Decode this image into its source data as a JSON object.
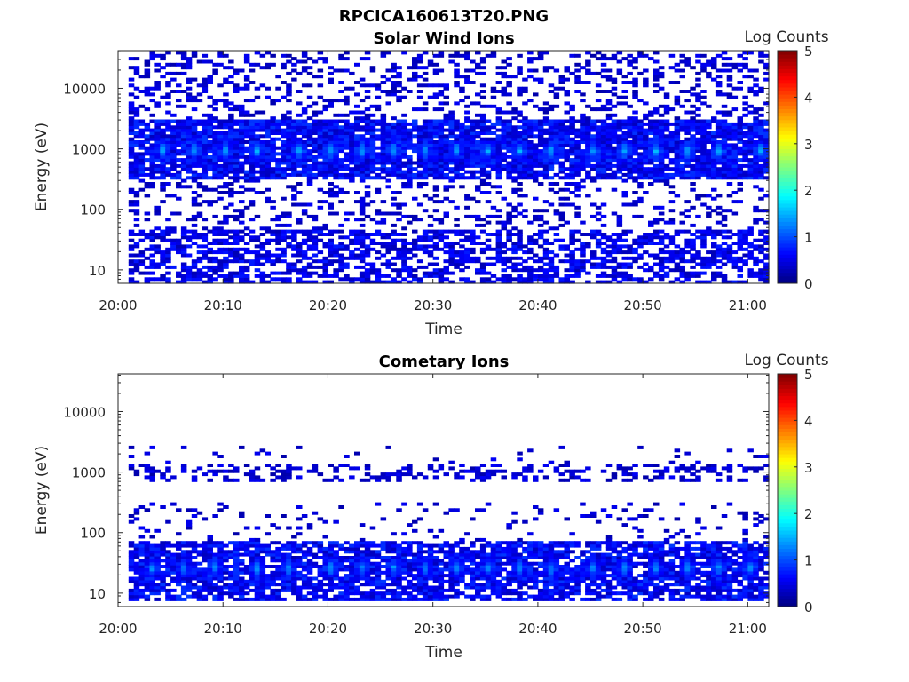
{
  "figure_title": "RPCICA160613T20.PNG",
  "chart_data": [
    {
      "type": "heatmap",
      "title": "Solar Wind Ions",
      "xlabel": "Time",
      "ylabel": "Energy (eV)",
      "xlim": [
        "20:00",
        "21:02"
      ],
      "ylim": [
        6,
        42000
      ],
      "yscale": "log",
      "x_tick_labels": [
        "20:00",
        "20:10",
        "20:20",
        "20:30",
        "20:40",
        "20:50",
        "21:00"
      ],
      "y_tick_labels": [
        "10",
        "100",
        "1000",
        "10000"
      ],
      "colorbar": {
        "label": "Log Counts",
        "min": 0,
        "max": 5,
        "tick_labels": [
          "0",
          "1",
          "2",
          "3",
          "4",
          "5"
        ],
        "colormap": "jet"
      },
      "bands": [
        {
          "energy_min": 6,
          "energy_max": 45,
          "density": 0.55,
          "level": 0.5
        },
        {
          "energy_min": 45,
          "energy_max": 300,
          "density": 0.22,
          "level": 0.4
        },
        {
          "energy_min": 300,
          "energy_max": 3000,
          "density": 0.85,
          "level": 0.6
        },
        {
          "energy_min": 3000,
          "energy_max": 40000,
          "density": 0.3,
          "level": 0.4
        }
      ],
      "peaks": {
        "energy": 900,
        "level": 1.3,
        "times": [
          "20:04",
          "20:07",
          "20:10",
          "20:13",
          "20:17",
          "20:20",
          "20:23",
          "20:26",
          "20:29",
          "20:32",
          "20:35",
          "20:38",
          "20:41",
          "20:45",
          "20:48",
          "20:51",
          "20:54",
          "20:57",
          "21:01"
        ]
      }
    },
    {
      "type": "heatmap",
      "title": "Cometary Ions",
      "xlabel": "Time",
      "ylabel": "Energy (eV)",
      "xlim": [
        "20:00",
        "21:02"
      ],
      "ylim": [
        6,
        42000
      ],
      "yscale": "log",
      "x_tick_labels": [
        "20:00",
        "20:10",
        "20:20",
        "20:30",
        "20:40",
        "20:50",
        "21:00"
      ],
      "y_tick_labels": [
        "10",
        "100",
        "1000",
        "10000"
      ],
      "colorbar": {
        "label": "Log Counts",
        "min": 0,
        "max": 5,
        "tick_labels": [
          "0",
          "1",
          "2",
          "3",
          "4",
          "5"
        ],
        "colormap": "jet"
      },
      "bands": [
        {
          "energy_min": 7,
          "energy_max": 70,
          "density": 0.75,
          "level": 0.6
        },
        {
          "energy_min": 70,
          "energy_max": 300,
          "density": 0.12,
          "level": 0.4
        },
        {
          "energy_min": 700,
          "energy_max": 1300,
          "density": 0.35,
          "level": 0.4
        },
        {
          "energy_min": 1300,
          "energy_max": 2500,
          "density": 0.05,
          "level": 0.4
        }
      ],
      "peaks": {
        "energy": 25,
        "level": 1.2,
        "times": [
          "20:03",
          "20:06",
          "20:09",
          "20:13",
          "20:16",
          "20:20",
          "20:23",
          "20:26",
          "20:29",
          "20:32",
          "20:35",
          "20:38",
          "20:41",
          "20:45",
          "20:48",
          "20:51",
          "20:54",
          "20:57",
          "21:00"
        ]
      }
    }
  ]
}
